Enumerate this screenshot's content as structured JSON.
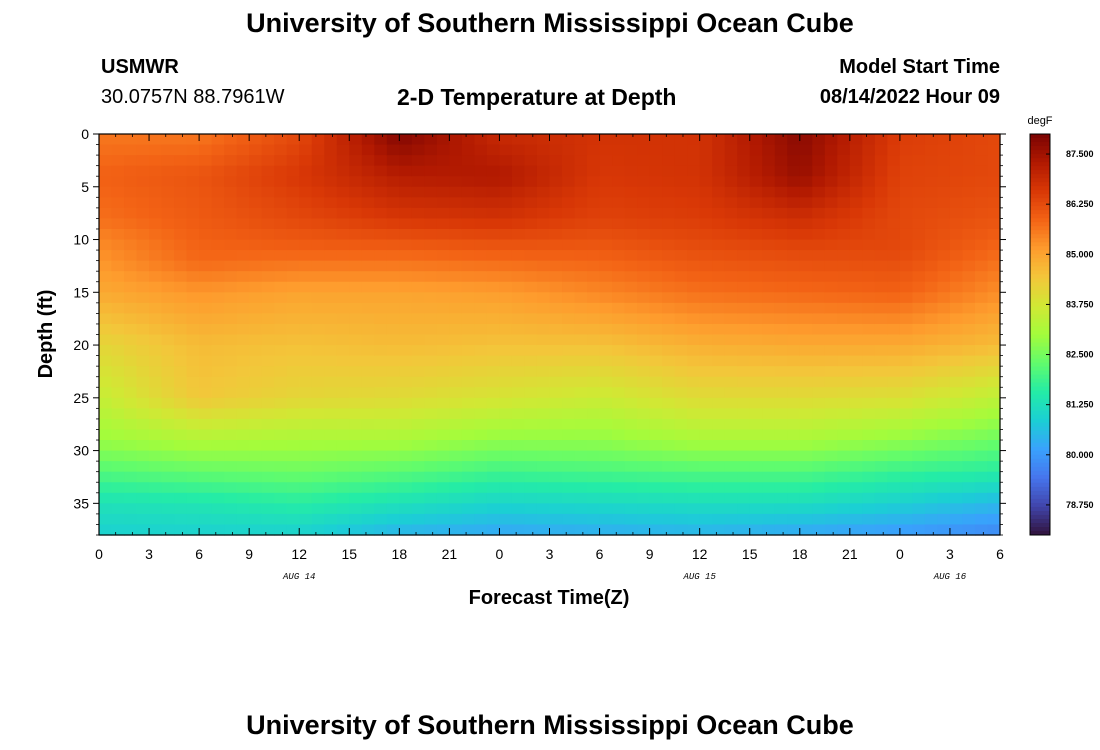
{
  "page": {
    "title_top": "University of Southern Mississippi Ocean Cube",
    "title_bottom": "University of Southern Mississippi Ocean Cube",
    "station_id": "USMWR",
    "station_coords": "30.0757N  88.7961W",
    "plot_title": "2-D Temperature at Depth",
    "model_label": "Model Start Time",
    "model_time": "08/14/2022 Hour 09"
  },
  "chart_data": {
    "type": "heatmap",
    "title": "2-D Temperature at Depth",
    "xlabel": "Forecast Time(Z)",
    "ylabel": "Depth (ft)",
    "x_hours_range": [
      0,
      54
    ],
    "y_depth_range": [
      0,
      38
    ],
    "y_reversed": true,
    "x_ticks": [
      "0",
      "3",
      "6",
      "9",
      "12",
      "15",
      "18",
      "21",
      "0",
      "3",
      "6",
      "9",
      "12",
      "15",
      "18",
      "21",
      "0",
      "3",
      "6"
    ],
    "y_ticks": [
      "0",
      "5",
      "10",
      "15",
      "20",
      "25",
      "30",
      "35"
    ],
    "y_tick_values": [
      0,
      5,
      10,
      15,
      20,
      25,
      30,
      35
    ],
    "date_labels": [
      {
        "text": "AUG 14",
        "hour": 12
      },
      {
        "text": "AUG 15",
        "hour": 36
      },
      {
        "text": "AUG 16",
        "hour": 51
      }
    ],
    "colorbar": {
      "unit": "degF",
      "min": 78.0,
      "max": 88.0,
      "tick_labels": [
        "87.500",
        "86.250",
        "85.000",
        "83.750",
        "82.500",
        "81.250",
        "80.000",
        "78.750"
      ],
      "tick_values": [
        87.5,
        86.25,
        85.0,
        83.75,
        82.5,
        81.25,
        80.0,
        78.75
      ],
      "colors": [
        "#30123b",
        "#4145ab",
        "#4675ed",
        "#39a2fc",
        "#1bcfd4",
        "#24eca6",
        "#61fc6c",
        "#a4fc3b",
        "#d1e834",
        "#f3c63a",
        "#fe9b2d",
        "#f36315",
        "#d93806",
        "#b11901",
        "#7a0402"
      ]
    },
    "series": [
      {
        "hour": 0,
        "depth_profile": [
          [
            0,
            85.6
          ],
          [
            4,
            85.9
          ],
          [
            8,
            85.7
          ],
          [
            10,
            85.4
          ],
          [
            15,
            84.9
          ],
          [
            20,
            84.1
          ],
          [
            25,
            83.5
          ],
          [
            29,
            82.9
          ],
          [
            32,
            82.1
          ],
          [
            35,
            81.3
          ],
          [
            38,
            80.9
          ]
        ]
      },
      {
        "hour": 6,
        "depth_profile": [
          [
            0,
            85.6
          ],
          [
            4,
            86.1
          ],
          [
            8,
            86.0
          ],
          [
            12,
            85.8
          ],
          [
            15,
            85.2
          ],
          [
            20,
            84.6
          ],
          [
            25,
            84.4
          ],
          [
            29,
            83.2
          ],
          [
            32,
            82.3
          ],
          [
            35,
            81.4
          ],
          [
            38,
            80.9
          ]
        ]
      },
      {
        "hour": 12,
        "depth_profile": [
          [
            0,
            86.3
          ],
          [
            4,
            86.6
          ],
          [
            8,
            86.3
          ],
          [
            11,
            85.9
          ],
          [
            15,
            85.0
          ],
          [
            20,
            84.5
          ],
          [
            25,
            84.1
          ],
          [
            29,
            83.1
          ],
          [
            32,
            82.4
          ],
          [
            35,
            81.6
          ],
          [
            38,
            80.9
          ]
        ]
      },
      {
        "hour": 18,
        "depth_profile": [
          [
            0,
            87.9
          ],
          [
            4,
            87.2
          ],
          [
            8,
            86.6
          ],
          [
            11,
            85.9
          ],
          [
            15,
            85.0
          ],
          [
            20,
            84.6
          ],
          [
            25,
            84.0
          ],
          [
            29,
            83.1
          ],
          [
            32,
            82.2
          ],
          [
            35,
            81.3
          ],
          [
            38,
            80.4
          ]
        ]
      },
      {
        "hour": 24,
        "depth_profile": [
          [
            0,
            86.9
          ],
          [
            4,
            87.3
          ],
          [
            8,
            86.7
          ],
          [
            11,
            86.0
          ],
          [
            15,
            85.1
          ],
          [
            20,
            84.5
          ],
          [
            25,
            83.8
          ],
          [
            29,
            82.8
          ],
          [
            32,
            81.9
          ],
          [
            35,
            81.0
          ],
          [
            38,
            80.2
          ]
        ]
      },
      {
        "hour": 30,
        "depth_profile": [
          [
            0,
            86.7
          ],
          [
            4,
            86.6
          ],
          [
            8,
            86.4
          ],
          [
            11,
            86.0
          ],
          [
            15,
            85.4
          ],
          [
            20,
            84.5
          ],
          [
            25,
            83.6
          ],
          [
            29,
            82.8
          ],
          [
            32,
            82.0
          ],
          [
            35,
            81.1
          ],
          [
            38,
            80.3
          ]
        ]
      },
      {
        "hour": 36,
        "depth_profile": [
          [
            0,
            86.7
          ],
          [
            4,
            86.7
          ],
          [
            8,
            86.5
          ],
          [
            11,
            86.2
          ],
          [
            15,
            85.7
          ],
          [
            20,
            84.8
          ],
          [
            25,
            84.0
          ],
          [
            29,
            83.1
          ],
          [
            32,
            82.1
          ],
          [
            35,
            81.2
          ],
          [
            38,
            80.4
          ]
        ]
      },
      {
        "hour": 42,
        "depth_profile": [
          [
            0,
            87.8
          ],
          [
            4,
            87.6
          ],
          [
            8,
            86.8
          ],
          [
            11,
            86.3
          ],
          [
            15,
            85.8
          ],
          [
            20,
            84.9
          ],
          [
            25,
            84.0
          ],
          [
            29,
            83.1
          ],
          [
            32,
            82.1
          ],
          [
            35,
            81.2
          ],
          [
            38,
            80.2
          ]
        ]
      },
      {
        "hour": 48,
        "depth_profile": [
          [
            0,
            86.5
          ],
          [
            4,
            86.4
          ],
          [
            8,
            86.3
          ],
          [
            11,
            86.3
          ],
          [
            15,
            85.9
          ],
          [
            20,
            84.9
          ],
          [
            25,
            83.9
          ],
          [
            29,
            82.8
          ],
          [
            32,
            81.8
          ],
          [
            35,
            80.9
          ],
          [
            38,
            80.0
          ]
        ]
      },
      {
        "hour": 54,
        "depth_profile": [
          [
            0,
            86.3
          ],
          [
            4,
            86.3
          ],
          [
            8,
            86.1
          ],
          [
            11,
            85.8
          ],
          [
            15,
            85.3
          ],
          [
            20,
            84.6
          ],
          [
            25,
            83.4
          ],
          [
            29,
            82.4
          ],
          [
            32,
            81.6
          ],
          [
            35,
            80.5
          ],
          [
            38,
            79.7
          ]
        ]
      }
    ]
  }
}
